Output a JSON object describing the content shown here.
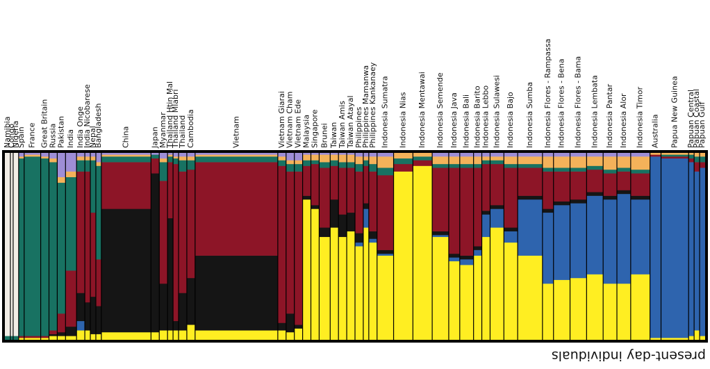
{
  "chart_data": {
    "type": "stacked-bar",
    "orientation": "rotated-180",
    "xlabel": "present-day individuals",
    "ancestry_components": [
      {
        "name": "component-yellow",
        "color": "#ffee22"
      },
      {
        "name": "component-blue",
        "color": "#2e64ae"
      },
      {
        "name": "component-black",
        "color": "#151515"
      },
      {
        "name": "component-crimson",
        "color": "#8d1527"
      },
      {
        "name": "component-green",
        "color": "#187262"
      },
      {
        "name": "component-orange",
        "color": "#f4b25a"
      },
      {
        "name": "component-lavender",
        "color": "#9e8ed6"
      },
      {
        "name": "component-ivory",
        "color": "#f2ede6"
      }
    ],
    "populations": [
      {
        "label": "Papuan Gulf",
        "n": 2,
        "comp": [
          0.02,
          0.9,
          0,
          0.03,
          0.03,
          0.02,
          0,
          0
        ]
      },
      {
        "label": "Papuan Coastal",
        "n": 2,
        "comp": [
          0.05,
          0.85,
          0,
          0.05,
          0.03,
          0.02,
          0,
          0
        ]
      },
      {
        "label": "Papuan Central",
        "n": 2,
        "comp": [
          0.02,
          0.93,
          0,
          0.02,
          0.02,
          0.01,
          0,
          0
        ]
      },
      {
        "label": "Papua New Guinea",
        "n": 10,
        "comp": [
          0.01,
          0.96,
          0,
          0.01,
          0.01,
          0.01,
          0,
          0
        ]
      },
      {
        "label": "Australia",
        "n": 4,
        "comp": [
          0.01,
          0.97,
          0,
          0.01,
          0,
          0.01,
          0,
          0
        ]
      },
      {
        "label": "Indonesia Timor",
        "n": 7,
        "comp": [
          0.35,
          0.4,
          0.02,
          0.12,
          0.02,
          0.07,
          0.02,
          0
        ]
      },
      {
        "label": "Indonesia Alor",
        "n": 5,
        "comp": [
          0.3,
          0.48,
          0.02,
          0.1,
          0.02,
          0.06,
          0.02,
          0
        ]
      },
      {
        "label": "Indonesia Pantar",
        "n": 5,
        "comp": [
          0.3,
          0.45,
          0.02,
          0.12,
          0.02,
          0.07,
          0.02,
          0
        ]
      },
      {
        "label": "Indonesia Lembata",
        "n": 6,
        "comp": [
          0.35,
          0.42,
          0.02,
          0.12,
          0.02,
          0.05,
          0.02,
          0
        ]
      },
      {
        "label": "Indonesia Flores - Bama",
        "n": 6,
        "comp": [
          0.33,
          0.4,
          0.02,
          0.15,
          0.02,
          0.06,
          0.02,
          0
        ]
      },
      {
        "label": "Indonesia Flores - Bena",
        "n": 6,
        "comp": [
          0.32,
          0.4,
          0.02,
          0.16,
          0.02,
          0.06,
          0.02,
          0
        ]
      },
      {
        "label": "Indonesia Flores - Rampassa",
        "n": 4,
        "comp": [
          0.3,
          0.38,
          0.02,
          0.2,
          0.02,
          0.06,
          0.02,
          0
        ]
      },
      {
        "label": "Indonesia Sumba",
        "n": 9,
        "comp": [
          0.45,
          0.3,
          0.02,
          0.15,
          0.02,
          0.04,
          0.02,
          0
        ]
      },
      {
        "label": "Indonesia Bajo",
        "n": 5,
        "comp": [
          0.52,
          0.06,
          0.02,
          0.32,
          0.02,
          0.04,
          0.02,
          0
        ]
      },
      {
        "label": "Indonesia Sulawesi",
        "n": 5,
        "comp": [
          0.6,
          0.1,
          0.02,
          0.22,
          0.02,
          0.02,
          0.02,
          0
        ]
      },
      {
        "label": "Indonesia Lebbo",
        "n": 3,
        "comp": [
          0.55,
          0.12,
          0.02,
          0.25,
          0.02,
          0.02,
          0.02,
          0
        ]
      },
      {
        "label": "Indonesia Barito",
        "n": 3,
        "comp": [
          0.45,
          0.03,
          0.02,
          0.42,
          0.02,
          0.04,
          0.02,
          0
        ]
      },
      {
        "label": "Indonesia Bali",
        "n": 5,
        "comp": [
          0.4,
          0.03,
          0.02,
          0.47,
          0.02,
          0.04,
          0.02,
          0
        ]
      },
      {
        "label": "Indonesia Java",
        "n": 4,
        "comp": [
          0.42,
          0.02,
          0.02,
          0.46,
          0.02,
          0.04,
          0.02,
          0
        ]
      },
      {
        "label": "Indonesia Semende",
        "n": 6,
        "comp": [
          0.55,
          0.01,
          0.02,
          0.34,
          0.02,
          0.04,
          0.02,
          0
        ]
      },
      {
        "label": "Indonesia Mentawai",
        "n": 7,
        "comp": [
          0.93,
          0,
          0,
          0.03,
          0.02,
          0.02,
          0,
          0
        ]
      },
      {
        "label": "Indonesia Nias",
        "n": 7,
        "comp": [
          0.9,
          0,
          0,
          0.04,
          0.03,
          0.03,
          0,
          0
        ]
      },
      {
        "label": "Indonesia Sumatra",
        "n": 6,
        "comp": [
          0.45,
          0.01,
          0.02,
          0.4,
          0.04,
          0.06,
          0.02,
          0
        ]
      },
      {
        "label": "Philippines Kankanaey",
        "n": 3,
        "comp": [
          0.52,
          0.02,
          0.04,
          0.32,
          0.04,
          0.04,
          0.02,
          0
        ]
      },
      {
        "label": "Philippines Mamanwa",
        "n": 2,
        "comp": [
          0.6,
          0.1,
          0.03,
          0.2,
          0.03,
          0.02,
          0.02,
          0
        ]
      },
      {
        "label": "Philippines",
        "n": 3,
        "comp": [
          0.5,
          0.02,
          0.05,
          0.33,
          0.04,
          0.04,
          0.02,
          0
        ]
      },
      {
        "label": "Taiwan Atayal",
        "n": 3,
        "comp": [
          0.58,
          0,
          0.1,
          0.24,
          0.03,
          0.04,
          0.01,
          0
        ]
      },
      {
        "label": "Taiwan Amis",
        "n": 3,
        "comp": [
          0.55,
          0,
          0.12,
          0.25,
          0.03,
          0.04,
          0.01,
          0
        ]
      },
      {
        "label": "Taiwan",
        "n": 3,
        "comp": [
          0.6,
          0,
          0.15,
          0.18,
          0.03,
          0.03,
          0.01,
          0
        ]
      },
      {
        "label": "Brunei",
        "n": 4,
        "comp": [
          0.55,
          0,
          0.05,
          0.32,
          0.03,
          0.04,
          0.01,
          0
        ]
      },
      {
        "label": "Singapore",
        "n": 3,
        "comp": [
          0.7,
          0,
          0.02,
          0.22,
          0.02,
          0.03,
          0.01,
          0
        ]
      },
      {
        "label": "Malaysia",
        "n": 3,
        "comp": [
          0.75,
          0,
          0.02,
          0.16,
          0.03,
          0.03,
          0.01,
          0
        ]
      },
      {
        "label": "Vietnam Ede",
        "n": 3,
        "comp": [
          0.06,
          0,
          0.02,
          0.82,
          0.04,
          0.02,
          0.04,
          0
        ]
      },
      {
        "label": "Vietnam Cham",
        "n": 3,
        "comp": [
          0.04,
          0,
          0.1,
          0.76,
          0.04,
          0.02,
          0.04,
          0
        ]
      },
      {
        "label": "Vietnam Giarai",
        "n": 3,
        "comp": [
          0.05,
          0,
          0.04,
          0.84,
          0.03,
          0.02,
          0.02,
          0
        ]
      },
      {
        "label": "Vietnam",
        "n": 30,
        "comp": [
          0.05,
          0,
          0.4,
          0.5,
          0.03,
          0.01,
          0.01,
          0
        ]
      },
      {
        "label": "Cambodia",
        "n": 3,
        "comp": [
          0.08,
          0,
          0.25,
          0.58,
          0.05,
          0.02,
          0.02,
          0
        ]
      },
      {
        "label": "Thailand",
        "n": 3,
        "comp": [
          0.05,
          0,
          0.2,
          0.65,
          0.06,
          0.02,
          0.02,
          0
        ]
      },
      {
        "label": "Thailand Mlabri",
        "n": 2,
        "comp": [
          0.05,
          0,
          0.05,
          0.84,
          0.03,
          0.01,
          0.02,
          0
        ]
      },
      {
        "label": "Thailand Htin Mal",
        "n": 2,
        "comp": [
          0.05,
          0,
          0.6,
          0.3,
          0.03,
          0.01,
          0.01,
          0
        ]
      },
      {
        "label": "Myanmar",
        "n": 3,
        "comp": [
          0.05,
          0,
          0.25,
          0.55,
          0.1,
          0.02,
          0.03,
          0
        ]
      },
      {
        "label": "Japan",
        "n": 3,
        "comp": [
          0.04,
          0,
          0.85,
          0.08,
          0.02,
          0,
          0.01,
          0
        ]
      },
      {
        "label": "China",
        "n": 18,
        "comp": [
          0.04,
          0,
          0.66,
          0.25,
          0.03,
          0.01,
          0.01,
          0
        ]
      },
      {
        "label": "Bangladesh",
        "n": 2,
        "comp": [
          0.03,
          0,
          0.15,
          0.25,
          0.5,
          0.02,
          0.05,
          0
        ]
      },
      {
        "label": "Nepal",
        "n": 2,
        "comp": [
          0.03,
          0,
          0.2,
          0.45,
          0.28,
          0.02,
          0.02,
          0
        ]
      },
      {
        "label": "India Nicobarese",
        "n": 2,
        "comp": [
          0.05,
          0,
          0.15,
          0.7,
          0.06,
          0.02,
          0.02,
          0
        ]
      },
      {
        "label": "India Onge",
        "n": 3,
        "comp": [
          0.05,
          0.05,
          0.15,
          0.65,
          0.06,
          0.02,
          0.02,
          0
        ]
      },
      {
        "label": "India",
        "n": 4,
        "comp": [
          0.02,
          0,
          0.05,
          0.3,
          0.5,
          0.03,
          0.1,
          0
        ]
      },
      {
        "label": "Pakistan",
        "n": 3,
        "comp": [
          0.02,
          0,
          0.02,
          0.1,
          0.7,
          0.03,
          0.13,
          0
        ]
      },
      {
        "label": "Russia",
        "n": 3,
        "comp": [
          0.02,
          0,
          0.01,
          0.02,
          0.9,
          0.02,
          0.03,
          0
        ]
      },
      {
        "label": "Great Britain",
        "n": 3,
        "comp": [
          0.01,
          0,
          0,
          0.01,
          0.95,
          0.01,
          0.02,
          0
        ]
      },
      {
        "label": "France",
        "n": 6,
        "comp": [
          0.01,
          0,
          0,
          0.01,
          0.96,
          0.01,
          0.01,
          0
        ]
      },
      {
        "label": "Spain",
        "n": 2,
        "comp": [
          0.01,
          0,
          0,
          0.01,
          0.95,
          0.01,
          0.02,
          0
        ]
      },
      {
        "label": "Nigeria",
        "n": 2,
        "comp": [
          0,
          0,
          0,
          0,
          0.02,
          0,
          0,
          0.98
        ]
      },
      {
        "label": "Congo",
        "n": 1,
        "comp": [
          0,
          0,
          0,
          0,
          0.02,
          0,
          0,
          0.98
        ]
      },
      {
        "label": "Namibia",
        "n": 2,
        "comp": [
          0,
          0,
          0,
          0,
          0.02,
          0,
          0,
          0.98
        ]
      }
    ]
  }
}
